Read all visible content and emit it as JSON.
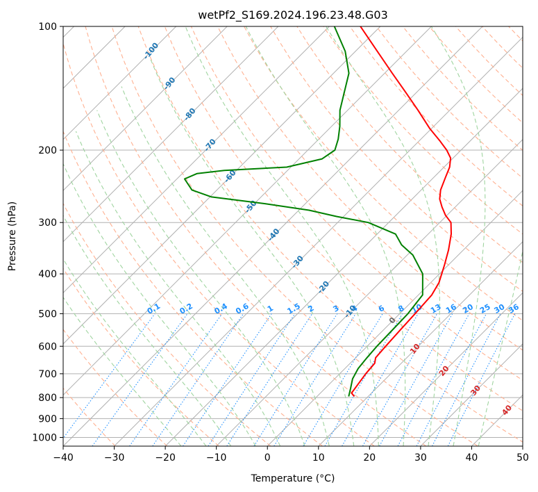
{
  "chart_data": {
    "type": "line",
    "title": "wetPf2_S169.2024.196.23.48.G03",
    "xlabel": "Temperature (°C)",
    "ylabel": "Pressure (hPa)",
    "xlim": [
      -40,
      50
    ],
    "ylim": [
      1050,
      100
    ],
    "y_scale": "log",
    "skew": "skew-T",
    "grid": true,
    "x_ticks": [
      "−40",
      "−30",
      "−20",
      "−10",
      "0",
      "10",
      "20",
      "30",
      "40",
      "50"
    ],
    "x_tick_values": [
      -40,
      -30,
      -20,
      -10,
      0,
      10,
      20,
      30,
      40,
      50
    ],
    "y_ticks": [
      "1000",
      "900",
      "800",
      "700",
      "600",
      "500",
      "400",
      "300",
      "200",
      "100"
    ],
    "y_tick_values": [
      1000,
      900,
      800,
      700,
      600,
      500,
      400,
      300,
      200,
      100
    ],
    "series": [
      {
        "color": "#ff0000",
        "role": "temperature",
        "points": [
          {
            "p": 795,
            "t": 7.3
          },
          {
            "p": 780,
            "t": 6.1
          },
          {
            "p": 700,
            "t": 5.1
          },
          {
            "p": 660,
            "t": 4.8
          },
          {
            "p": 640,
            "t": 3.9
          },
          {
            "p": 600,
            "t": 3.6
          },
          {
            "p": 550,
            "t": 3.3
          },
          {
            "p": 500,
            "t": 3.0
          },
          {
            "p": 450,
            "t": 2.6
          },
          {
            "p": 420,
            "t": 1.6
          },
          {
            "p": 380,
            "t": -0.8
          },
          {
            "p": 350,
            "t": -2.9
          },
          {
            "p": 320,
            "t": -5.5
          },
          {
            "p": 300,
            "t": -7.8
          },
          {
            "p": 288,
            "t": -10.3
          },
          {
            "p": 275,
            "t": -12.6
          },
          {
            "p": 263,
            "t": -14.6
          },
          {
            "p": 250,
            "t": -16.2
          },
          {
            "p": 233,
            "t": -17.7
          },
          {
            "p": 220,
            "t": -18.9
          },
          {
            "p": 209,
            "t": -20.5
          },
          {
            "p": 200,
            "t": -22.8
          },
          {
            "p": 190,
            "t": -25.9
          },
          {
            "p": 177,
            "t": -30.4
          },
          {
            "p": 160,
            "t": -36.2
          },
          {
            "p": 145,
            "t": -42.0
          },
          {
            "p": 130,
            "t": -48.5
          },
          {
            "p": 115,
            "t": -55.7
          },
          {
            "p": 100,
            "t": -63.9
          }
        ]
      },
      {
        "color": "#008000",
        "role": "dewpoint",
        "points": [
          {
            "p": 795,
            "t": 6.2
          },
          {
            "p": 760,
            "t": 5.0
          },
          {
            "p": 720,
            "t": 3.5
          },
          {
            "p": 680,
            "t": 2.6
          },
          {
            "p": 640,
            "t": 2.2
          },
          {
            "p": 600,
            "t": 1.9
          },
          {
            "p": 560,
            "t": 1.8
          },
          {
            "p": 500,
            "t": 1.6
          },
          {
            "p": 450,
            "t": 0.8
          },
          {
            "p": 400,
            "t": -3.3
          },
          {
            "p": 360,
            "t": -8.9
          },
          {
            "p": 340,
            "t": -13.1
          },
          {
            "p": 320,
            "t": -16.4
          },
          {
            "p": 300,
            "t": -24.0
          },
          {
            "p": 290,
            "t": -31.4
          },
          {
            "p": 280,
            "t": -38.0
          },
          {
            "p": 270,
            "t": -47.9
          },
          {
            "p": 260,
            "t": -59.7
          },
          {
            "p": 250,
            "t": -64.9
          },
          {
            "p": 235,
            "t": -68.5
          },
          {
            "p": 228,
            "t": -67.1
          },
          {
            "p": 224,
            "t": -62.4
          },
          {
            "p": 220,
            "t": -50.8
          },
          {
            "p": 210,
            "t": -45.5
          },
          {
            "p": 200,
            "t": -44.7
          },
          {
            "p": 188,
            "t": -46.2
          },
          {
            "p": 175,
            "t": -48.4
          },
          {
            "p": 160,
            "t": -51.5
          },
          {
            "p": 145,
            "t": -54.1
          },
          {
            "p": 130,
            "t": -57.0
          },
          {
            "p": 115,
            "t": -62.0
          },
          {
            "p": 100,
            "t": -69.0
          }
        ]
      }
    ],
    "dry_adiabats_K": [
      210,
      220,
      230,
      240,
      250,
      260,
      270,
      280,
      290,
      300,
      310,
      320,
      330,
      340,
      350,
      360,
      370,
      380,
      390,
      400,
      410,
      420,
      430,
      440,
      450,
      460
    ],
    "dry_adiabat_labels": [
      "-100",
      "-90",
      "-80",
      "-70",
      "-60",
      "-50",
      "-40",
      "-30",
      "-20",
      "-10"
    ],
    "moist_adiabats_C": [
      -20,
      -15,
      -10,
      -5,
      0,
      5,
      10,
      15,
      20,
      25,
      30,
      35,
      40
    ],
    "moist_adiabat_labels": [
      "0",
      "10",
      "20",
      "30",
      "40"
    ],
    "mixing_ratios": [
      "0.1",
      "0.2",
      "0.4",
      "0.6",
      "1",
      "1.5",
      "2",
      "3",
      "4",
      "6",
      "8",
      "10",
      "13",
      "16",
      "20",
      "25",
      "30",
      "36"
    ],
    "colors": {
      "temperature": "#ff0000",
      "dewpoint": "#008000",
      "grid": "#b0b0b0",
      "isotherm": "#808080",
      "dry_adiabat": "#ffb090",
      "moist_adiabat": "#9fd49f",
      "mixing_ratio": "#1f8fff",
      "dry_label": "#1f77b4",
      "moist_label": "#d62728",
      "mixing_label": "#1e90ff"
    }
  }
}
